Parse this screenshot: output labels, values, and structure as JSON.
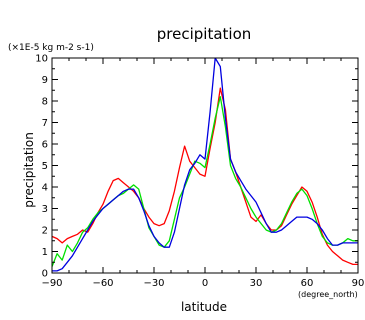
{
  "chart_data": {
    "type": "line",
    "title": "precipitation",
    "units_label": "(×1E-5 kg m-2 s-1)",
    "ylabel": "precipitation",
    "xlabel": "latitude",
    "x_unit_label": "(degree_north)",
    "xlim": [
      -90,
      90
    ],
    "ylim": [
      0,
      10
    ],
    "xticks": [
      -90,
      -60,
      -30,
      0,
      30,
      60,
      90
    ],
    "xtick_labels": [
      "−90",
      "−60",
      "−30",
      "0",
      "30",
      "60",
      "90"
    ],
    "yticks": [
      0,
      1,
      2,
      3,
      4,
      5,
      6,
      7,
      8,
      9,
      10
    ],
    "ytick_labels": [
      "0",
      "1",
      "2",
      "3",
      "4",
      "5",
      "6",
      "7",
      "8",
      "9",
      "10"
    ],
    "grid": false,
    "series": [
      {
        "color": "#ff0000",
        "x": [
          -90,
          -87,
          -84,
          -81,
          -78,
          -75,
          -72,
          -69,
          -66,
          -63,
          -60,
          -57,
          -54,
          -51,
          -48,
          -45,
          -42,
          -39,
          -36,
          -33,
          -30,
          -27,
          -24,
          -21,
          -18,
          -15,
          -12,
          -9,
          -6,
          -3,
          0,
          3,
          6,
          9,
          12,
          15,
          18,
          21,
          24,
          27,
          30,
          33,
          36,
          39,
          42,
          45,
          48,
          51,
          54,
          57,
          60,
          63,
          66,
          69,
          72,
          75,
          78,
          81,
          84,
          87,
          90
        ],
        "values": [
          1.7,
          1.6,
          1.4,
          1.6,
          1.7,
          1.8,
          2.0,
          1.9,
          2.3,
          2.8,
          3.2,
          3.8,
          4.3,
          4.4,
          4.2,
          4.0,
          3.8,
          3.5,
          3.0,
          2.6,
          2.3,
          2.2,
          2.3,
          2.9,
          3.8,
          4.9,
          5.9,
          5.2,
          4.9,
          4.6,
          4.5,
          5.8,
          7.0,
          8.6,
          7.6,
          5.3,
          4.7,
          4.0,
          3.3,
          2.6,
          2.4,
          2.7,
          2.3,
          2.0,
          2.0,
          2.2,
          2.7,
          3.2,
          3.6,
          4.0,
          3.8,
          3.3,
          2.6,
          1.8,
          1.3,
          1.0,
          0.8,
          0.6,
          0.5,
          0.4,
          0.4
        ]
      },
      {
        "color": "#00e000",
        "x": [
          -90,
          -87,
          -84,
          -81,
          -78,
          -75,
          -72,
          -69,
          -66,
          -63,
          -60,
          -57,
          -54,
          -51,
          -48,
          -45,
          -42,
          -39,
          -36,
          -33,
          -30,
          -27,
          -24,
          -21,
          -18,
          -15,
          -12,
          -9,
          -6,
          -3,
          0,
          3,
          6,
          9,
          12,
          15,
          18,
          21,
          24,
          27,
          30,
          33,
          36,
          39,
          42,
          45,
          48,
          51,
          54,
          57,
          60,
          63,
          66,
          69,
          72,
          75,
          78,
          81,
          84,
          87,
          90
        ],
        "values": [
          0.3,
          0.9,
          0.6,
          1.3,
          1.0,
          1.4,
          1.9,
          2.1,
          2.5,
          2.8,
          3.0,
          3.2,
          3.4,
          3.6,
          3.7,
          3.9,
          4.1,
          3.9,
          3.0,
          2.1,
          1.7,
          1.3,
          1.2,
          1.5,
          2.5,
          3.5,
          4.0,
          4.6,
          5.2,
          5.1,
          4.9,
          6.0,
          7.2,
          8.2,
          6.8,
          5.0,
          4.4,
          4.0,
          3.5,
          3.0,
          2.6,
          2.3,
          2.0,
          1.9,
          2.0,
          2.3,
          2.8,
          3.3,
          3.7,
          3.9,
          3.6,
          3.0,
          2.3,
          1.7,
          1.4,
          1.3,
          1.3,
          1.4,
          1.6,
          1.5,
          1.5
        ]
      },
      {
        "color": "#0000e0",
        "x": [
          -90,
          -87,
          -84,
          -81,
          -78,
          -75,
          -72,
          -69,
          -66,
          -63,
          -60,
          -57,
          -54,
          -51,
          -48,
          -45,
          -42,
          -39,
          -36,
          -33,
          -30,
          -27,
          -24,
          -21,
          -18,
          -15,
          -12,
          -9,
          -6,
          -3,
          0,
          3,
          6,
          9,
          12,
          15,
          18,
          21,
          24,
          27,
          30,
          33,
          36,
          39,
          42,
          45,
          48,
          51,
          54,
          57,
          60,
          63,
          66,
          69,
          72,
          75,
          78,
          81,
          84,
          87,
          90
        ],
        "values": [
          0.1,
          0.1,
          0.2,
          0.5,
          0.8,
          1.2,
          1.6,
          2.0,
          2.4,
          2.7,
          3.0,
          3.2,
          3.4,
          3.6,
          3.8,
          3.9,
          3.9,
          3.5,
          2.9,
          2.2,
          1.7,
          1.4,
          1.2,
          1.2,
          1.9,
          3.0,
          4.1,
          4.8,
          5.1,
          5.5,
          5.3,
          7.5,
          10.0,
          9.6,
          7.2,
          5.3,
          4.7,
          4.3,
          3.9,
          3.6,
          3.3,
          2.8,
          2.3,
          1.9,
          1.9,
          2.0,
          2.2,
          2.4,
          2.6,
          2.6,
          2.6,
          2.5,
          2.3,
          2.0,
          1.6,
          1.3,
          1.3,
          1.4,
          1.4,
          1.4,
          1.4
        ]
      }
    ]
  }
}
